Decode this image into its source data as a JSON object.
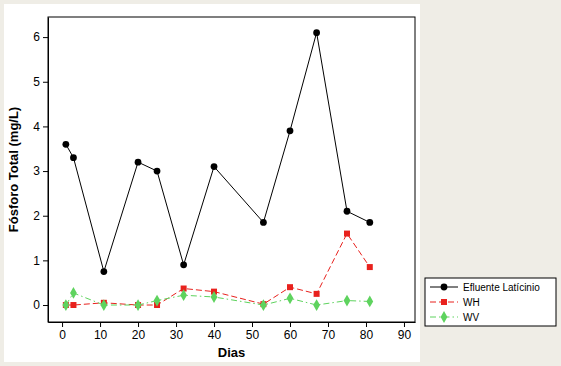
{
  "chart_data": {
    "type": "line",
    "x_label": "Dias",
    "y_label": "Fósforo Total (mg/L)",
    "x": [
      1,
      3,
      11,
      20,
      25,
      32,
      40,
      53,
      60,
      67,
      75,
      81
    ],
    "series": [
      {
        "name": "Efluente Latícinio",
        "color": "#000000",
        "marker": "circle",
        "line_style": "solid",
        "values": [
          3.6,
          3.3,
          0.75,
          3.2,
          3.0,
          0.9,
          3.1,
          1.85,
          3.9,
          6.1,
          2.1,
          1.85
        ]
      },
      {
        "name": "WH",
        "color": "#e8211d",
        "marker": "square",
        "line_style": "dashed",
        "values": [
          0,
          0,
          0.05,
          0,
          0,
          0.37,
          0.3,
          0.02,
          0.4,
          0.25,
          1.6,
          0.85
        ]
      },
      {
        "name": "WV",
        "color": "#5ed35e",
        "marker": "diamond",
        "line_style": "dashdot",
        "values": [
          0,
          0.27,
          0,
          0,
          0.1,
          0.22,
          0.18,
          0,
          0.15,
          0,
          0.1,
          0.08
        ]
      }
    ],
    "xlim": [
      -3.7,
      92.9
    ],
    "ylim": [
      -0.38,
      6.45
    ],
    "xticks": [
      0,
      10,
      20,
      30,
      40,
      50,
      60,
      70,
      80,
      90
    ],
    "yticks": [
      0,
      1,
      2,
      3,
      4,
      5,
      6
    ],
    "legend": "right"
  }
}
